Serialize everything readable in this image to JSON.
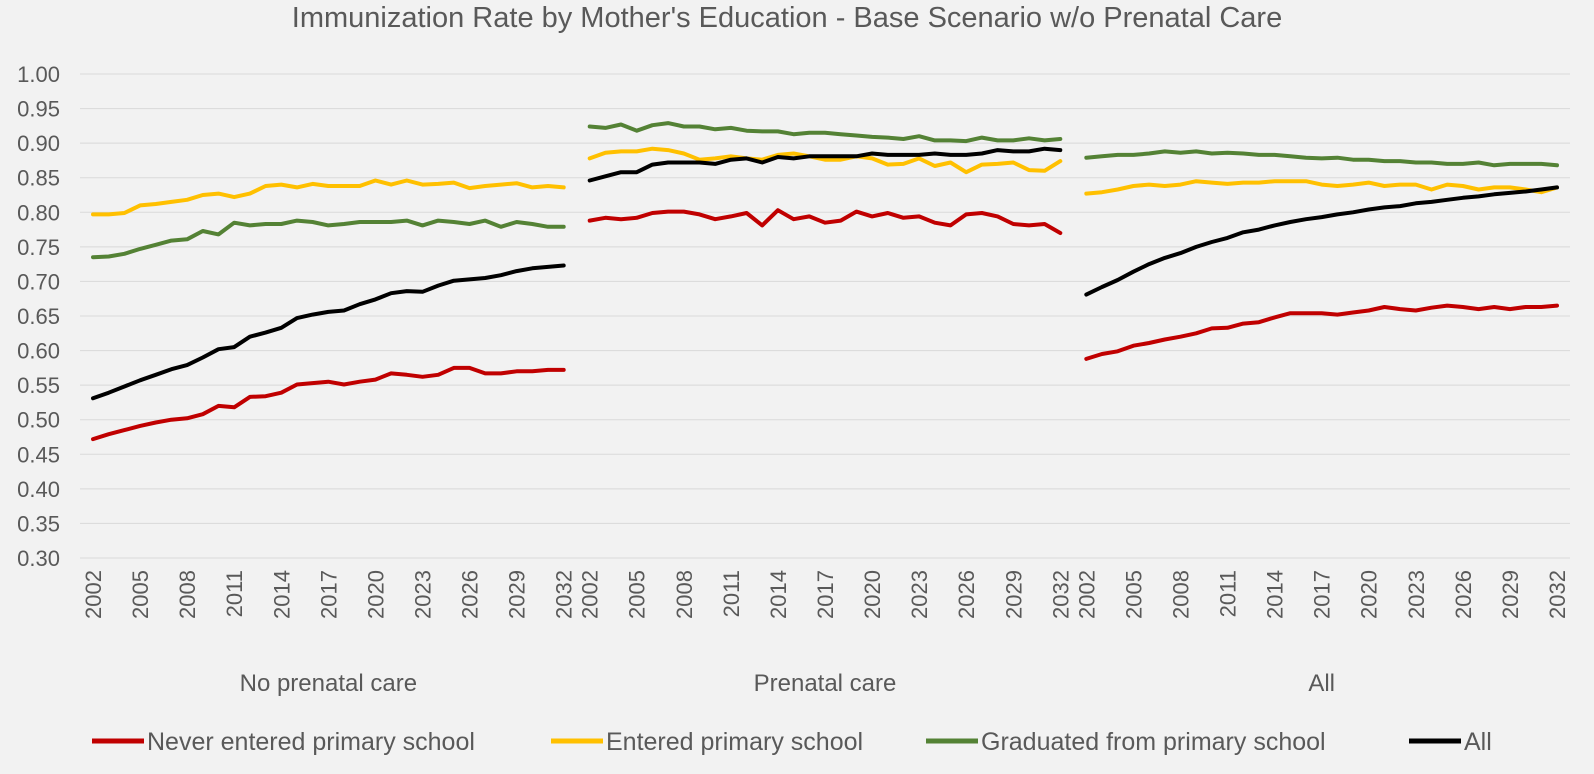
{
  "chart_data": {
    "type": "line",
    "title": "Immunization Rate by Mother's Education - Base Scenario w/o Prenatal Care",
    "xlabel": "",
    "ylabel": "",
    "ylim": [
      0.3,
      1.0
    ],
    "yticks": [
      "0.30",
      "0.35",
      "0.40",
      "0.45",
      "0.50",
      "0.55",
      "0.60",
      "0.65",
      "0.70",
      "0.75",
      "0.80",
      "0.85",
      "0.90",
      "0.95",
      "1.00"
    ],
    "x": [
      2002,
      2003,
      2004,
      2005,
      2006,
      2007,
      2008,
      2009,
      2010,
      2011,
      2012,
      2013,
      2014,
      2015,
      2016,
      2017,
      2018,
      2019,
      2020,
      2021,
      2022,
      2023,
      2024,
      2025,
      2026,
      2027,
      2028,
      2029,
      2030,
      2031,
      2032
    ],
    "xticks": [
      "2002",
      "2005",
      "2008",
      "2011",
      "2014",
      "2017",
      "2020",
      "2023",
      "2026",
      "2029",
      "2032"
    ],
    "grid": true,
    "legend_position": "bottom",
    "colors": {
      "never": "#c00000",
      "entered": "#ffc000",
      "graduated": "#548235",
      "all": "#000000",
      "grid": "#d9d9d9",
      "text": "#595959"
    },
    "series_names": [
      "Never entered primary school",
      "Entered primary school",
      "Graduated from primary school",
      "All"
    ],
    "panels": [
      {
        "label": "No prenatal care",
        "series": [
          {
            "key": "never",
            "values": [
              0.472,
              0.479,
              0.485,
              0.491,
              0.496,
              0.5,
              0.502,
              0.508,
              0.52,
              0.518,
              0.533,
              0.534,
              0.539,
              0.551,
              0.553,
              0.555,
              0.551,
              0.555,
              0.558,
              0.567,
              0.565,
              0.562,
              0.565,
              0.575,
              0.575,
              0.567,
              0.567,
              0.57,
              0.57,
              0.572,
              0.572
            ]
          },
          {
            "key": "entered",
            "values": [
              0.797,
              0.797,
              0.799,
              0.81,
              0.812,
              0.815,
              0.818,
              0.825,
              0.827,
              0.822,
              0.827,
              0.838,
              0.84,
              0.836,
              0.841,
              0.838,
              0.838,
              0.838,
              0.846,
              0.84,
              0.846,
              0.84,
              0.841,
              0.843,
              0.835,
              0.838,
              0.84,
              0.842,
              0.836,
              0.838,
              0.836
            ]
          },
          {
            "key": "graduated",
            "values": [
              0.735,
              0.736,
              0.74,
              0.747,
              0.753,
              0.759,
              0.761,
              0.773,
              0.768,
              0.785,
              0.781,
              0.783,
              0.783,
              0.788,
              0.786,
              0.781,
              0.783,
              0.786,
              0.786,
              0.786,
              0.788,
              0.781,
              0.788,
              0.786,
              0.783,
              0.788,
              0.779,
              0.786,
              0.783,
              0.779,
              0.779
            ]
          },
          {
            "key": "all",
            "values": [
              0.531,
              0.539,
              0.548,
              0.557,
              0.565,
              0.573,
              0.579,
              0.59,
              0.602,
              0.605,
              0.62,
              0.626,
              0.633,
              0.647,
              0.652,
              0.656,
              0.658,
              0.667,
              0.674,
              0.683,
              0.686,
              0.685,
              0.694,
              0.701,
              0.703,
              0.705,
              0.709,
              0.715,
              0.719,
              0.721,
              0.723
            ]
          }
        ]
      },
      {
        "label": "Prenatal care",
        "series": [
          {
            "key": "never",
            "values": [
              0.788,
              0.792,
              0.79,
              0.792,
              0.799,
              0.801,
              0.801,
              0.797,
              0.79,
              0.794,
              0.799,
              0.781,
              0.803,
              0.79,
              0.794,
              0.785,
              0.788,
              0.801,
              0.794,
              0.799,
              0.792,
              0.794,
              0.785,
              0.781,
              0.797,
              0.799,
              0.794,
              0.783,
              0.781,
              0.783,
              0.77
            ]
          },
          {
            "key": "entered",
            "values": [
              0.878,
              0.886,
              0.888,
              0.888,
              0.892,
              0.89,
              0.885,
              0.876,
              0.878,
              0.881,
              0.878,
              0.876,
              0.883,
              0.885,
              0.881,
              0.876,
              0.876,
              0.881,
              0.878,
              0.869,
              0.87,
              0.878,
              0.867,
              0.872,
              0.858,
              0.869,
              0.87,
              0.872,
              0.861,
              0.86,
              0.874
            ]
          },
          {
            "key": "graduated",
            "values": [
              0.924,
              0.922,
              0.927,
              0.918,
              0.926,
              0.929,
              0.924,
              0.924,
              0.92,
              0.922,
              0.918,
              0.917,
              0.917,
              0.913,
              0.915,
              0.915,
              0.913,
              0.911,
              0.909,
              0.908,
              0.906,
              0.91,
              0.904,
              0.904,
              0.903,
              0.908,
              0.904,
              0.904,
              0.907,
              0.904,
              0.906
            ]
          },
          {
            "key": "all",
            "values": [
              0.846,
              0.852,
              0.858,
              0.858,
              0.869,
              0.872,
              0.872,
              0.872,
              0.87,
              0.876,
              0.878,
              0.872,
              0.88,
              0.878,
              0.881,
              0.881,
              0.881,
              0.881,
              0.885,
              0.883,
              0.883,
              0.883,
              0.885,
              0.883,
              0.883,
              0.885,
              0.89,
              0.888,
              0.888,
              0.892,
              0.89
            ]
          }
        ]
      },
      {
        "label": "All",
        "series": [
          {
            "key": "never",
            "values": [
              0.588,
              0.595,
              0.599,
              0.607,
              0.611,
              0.616,
              0.62,
              0.625,
              0.632,
              0.633,
              0.639,
              0.641,
              0.648,
              0.654,
              0.654,
              0.654,
              0.652,
              0.655,
              0.658,
              0.663,
              0.66,
              0.658,
              0.662,
              0.665,
              0.663,
              0.66,
              0.663,
              0.66,
              0.663,
              0.663,
              0.665
            ]
          },
          {
            "key": "entered",
            "values": [
              0.827,
              0.829,
              0.833,
              0.838,
              0.84,
              0.838,
              0.84,
              0.845,
              0.843,
              0.841,
              0.843,
              0.843,
              0.845,
              0.845,
              0.845,
              0.84,
              0.838,
              0.84,
              0.843,
              0.838,
              0.84,
              0.84,
              0.833,
              0.84,
              0.838,
              0.833,
              0.836,
              0.836,
              0.833,
              0.829,
              0.836
            ]
          },
          {
            "key": "graduated",
            "values": [
              0.879,
              0.881,
              0.883,
              0.883,
              0.885,
              0.888,
              0.886,
              0.888,
              0.885,
              0.886,
              0.885,
              0.883,
              0.883,
              0.881,
              0.879,
              0.878,
              0.879,
              0.876,
              0.876,
              0.874,
              0.874,
              0.872,
              0.872,
              0.87,
              0.87,
              0.872,
              0.868,
              0.87,
              0.87,
              0.87,
              0.868
            ]
          },
          {
            "key": "all",
            "values": [
              0.681,
              0.692,
              0.702,
              0.714,
              0.725,
              0.734,
              0.741,
              0.75,
              0.757,
              0.763,
              0.771,
              0.775,
              0.781,
              0.786,
              0.79,
              0.793,
              0.797,
              0.8,
              0.804,
              0.807,
              0.809,
              0.813,
              0.815,
              0.818,
              0.821,
              0.823,
              0.826,
              0.828,
              0.83,
              0.833,
              0.836
            ]
          }
        ]
      }
    ]
  }
}
